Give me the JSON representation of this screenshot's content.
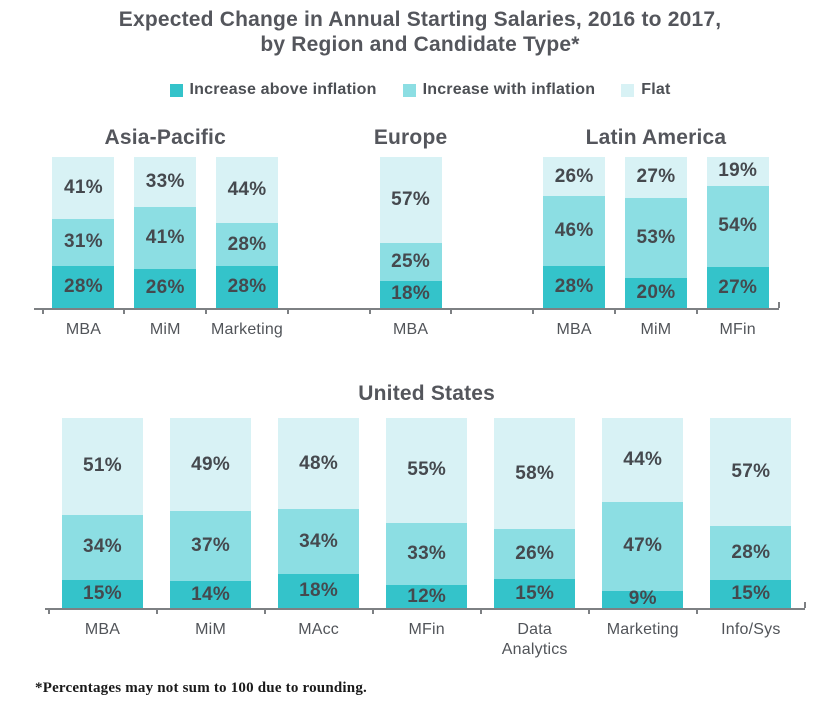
{
  "title": {
    "line1": "Expected Change in Annual Starting Salaries, 2016 to 2017,",
    "line2": "by Region and Candidate Type*"
  },
  "legend": [
    {
      "label": "Increase above inflation",
      "color": "#34c3ca"
    },
    {
      "label": "Increase with inflation",
      "color": "#8cdee3"
    },
    {
      "label": "Flat",
      "color": "#d8f2f5"
    }
  ],
  "colors": {
    "background": "#ffffff",
    "axis": "#7d8083",
    "title_text": "#54565c",
    "value_label_text": "#45494e",
    "category_text": "#515459",
    "legend_text": "#4c4f54",
    "footnote_text": "#1a1a1a"
  },
  "footnote": "*Percentages may not sum to 100 due to rounding.",
  "chart_data": [
    {
      "type": "bar",
      "stacked": true,
      "orientation": "vertical",
      "value_unit": "%",
      "ylim": [
        0,
        100
      ],
      "grid": false,
      "stack_order_bottom_to_top": [
        "Increase above inflation",
        "Increase with inflation",
        "Flat"
      ],
      "row": "top",
      "groups": [
        {
          "title": "Asia-Pacific",
          "start_slot": 0,
          "bars": [
            {
              "label": "MBA",
              "values": [
                28,
                31,
                41
              ]
            },
            {
              "label": "MiM",
              "values": [
                26,
                41,
                33
              ]
            },
            {
              "label": "Marketing",
              "values": [
                28,
                28,
                44
              ]
            }
          ]
        },
        {
          "title": "Europe",
          "start_slot": 4,
          "bars": [
            {
              "label": "MBA",
              "values": [
                18,
                25,
                57
              ]
            }
          ]
        },
        {
          "title": "Latin America",
          "start_slot": 6,
          "bars": [
            {
              "label": "MBA",
              "values": [
                28,
                46,
                26
              ]
            },
            {
              "label": "MiM",
              "values": [
                20,
                53,
                27
              ]
            },
            {
              "label": "MFin",
              "values": [
                27,
                54,
                19
              ]
            }
          ]
        }
      ]
    },
    {
      "type": "bar",
      "stacked": true,
      "orientation": "vertical",
      "value_unit": "%",
      "ylim": [
        0,
        100
      ],
      "grid": false,
      "stack_order_bottom_to_top": [
        "Increase above inflation",
        "Increase with inflation",
        "Flat"
      ],
      "row": "bottom",
      "groups": [
        {
          "title": "United States",
          "start_slot": 0,
          "bars": [
            {
              "label": "MBA",
              "values": [
                15,
                34,
                51
              ]
            },
            {
              "label": "MiM",
              "values": [
                14,
                37,
                49
              ]
            },
            {
              "label": "MAcc",
              "values": [
                18,
                34,
                48
              ]
            },
            {
              "label": "MFin",
              "values": [
                12,
                33,
                55
              ]
            },
            {
              "label": "Data\nAnalytics",
              "values": [
                15,
                26,
                58
              ]
            },
            {
              "label": "Marketing",
              "values": [
                9,
                47,
                44
              ]
            },
            {
              "label": "Info/Sys",
              "values": [
                15,
                28,
                57
              ]
            }
          ]
        }
      ]
    }
  ]
}
